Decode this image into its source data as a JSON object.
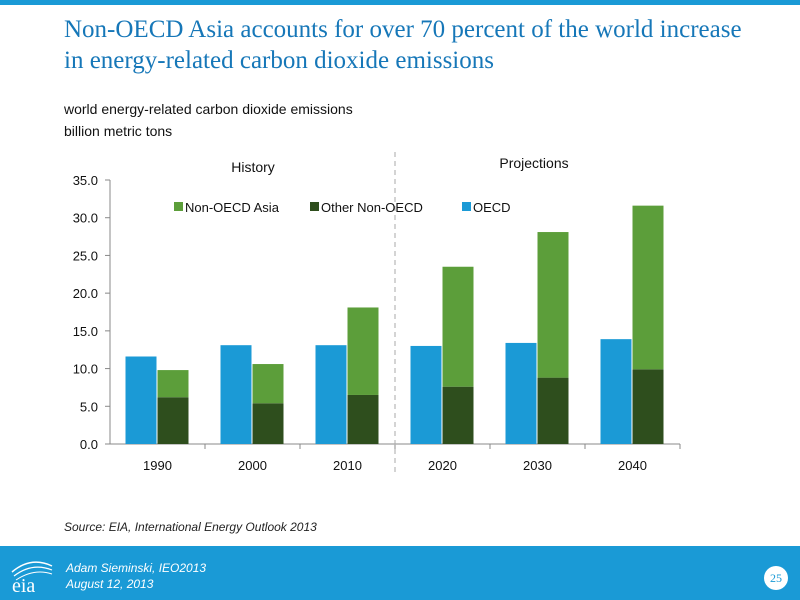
{
  "slide": {
    "title": "Non-OECD Asia accounts for over 70 percent of the world increase in energy-related carbon dioxide emissions",
    "subtitle_line1": "world energy-related carbon dioxide emissions",
    "subtitle_line2": "billion metric tons",
    "source": "Source:  EIA, International Energy Outlook 2013",
    "footer_author": "Adam Sieminski, IEO2013",
    "footer_date": "August 12, 2013",
    "page_number": "25",
    "logo_text": "eia"
  },
  "colors": {
    "oecd": "#1b9ad6",
    "other_non_oecd": "#2e4e1d",
    "non_oecd_asia": "#5c9e3a",
    "brand_blue": "#1a9ad6",
    "title_blue": "#1677b8"
  },
  "chart_data": {
    "type": "bar",
    "categories": [
      "1990",
      "2000",
      "2010",
      "2020",
      "2030",
      "2040"
    ],
    "series": [
      {
        "name": "OECD",
        "stack": "a",
        "values": [
          11.6,
          13.1,
          13.1,
          13.0,
          13.4,
          13.9
        ]
      },
      {
        "name": "Other Non-OECD",
        "stack": "b",
        "values": [
          6.2,
          5.4,
          6.5,
          7.6,
          8.8,
          9.9
        ]
      },
      {
        "name": "Non-OECD Asia",
        "stack": "b",
        "values": [
          3.6,
          5.2,
          11.6,
          15.9,
          19.3,
          21.7
        ]
      }
    ],
    "legend_order": [
      "Non-OECD Asia",
      "Other Non-OECD",
      "OECD"
    ],
    "ylim": [
      0,
      35
    ],
    "yticks": [
      "0.0",
      "5.0",
      "10.0",
      "15.0",
      "20.0",
      "25.0",
      "30.0",
      "35.0"
    ],
    "annotations": {
      "history": "History",
      "projections": "Projections"
    },
    "divider_after_index": 2,
    "grid": false,
    "legend_position": "top"
  }
}
